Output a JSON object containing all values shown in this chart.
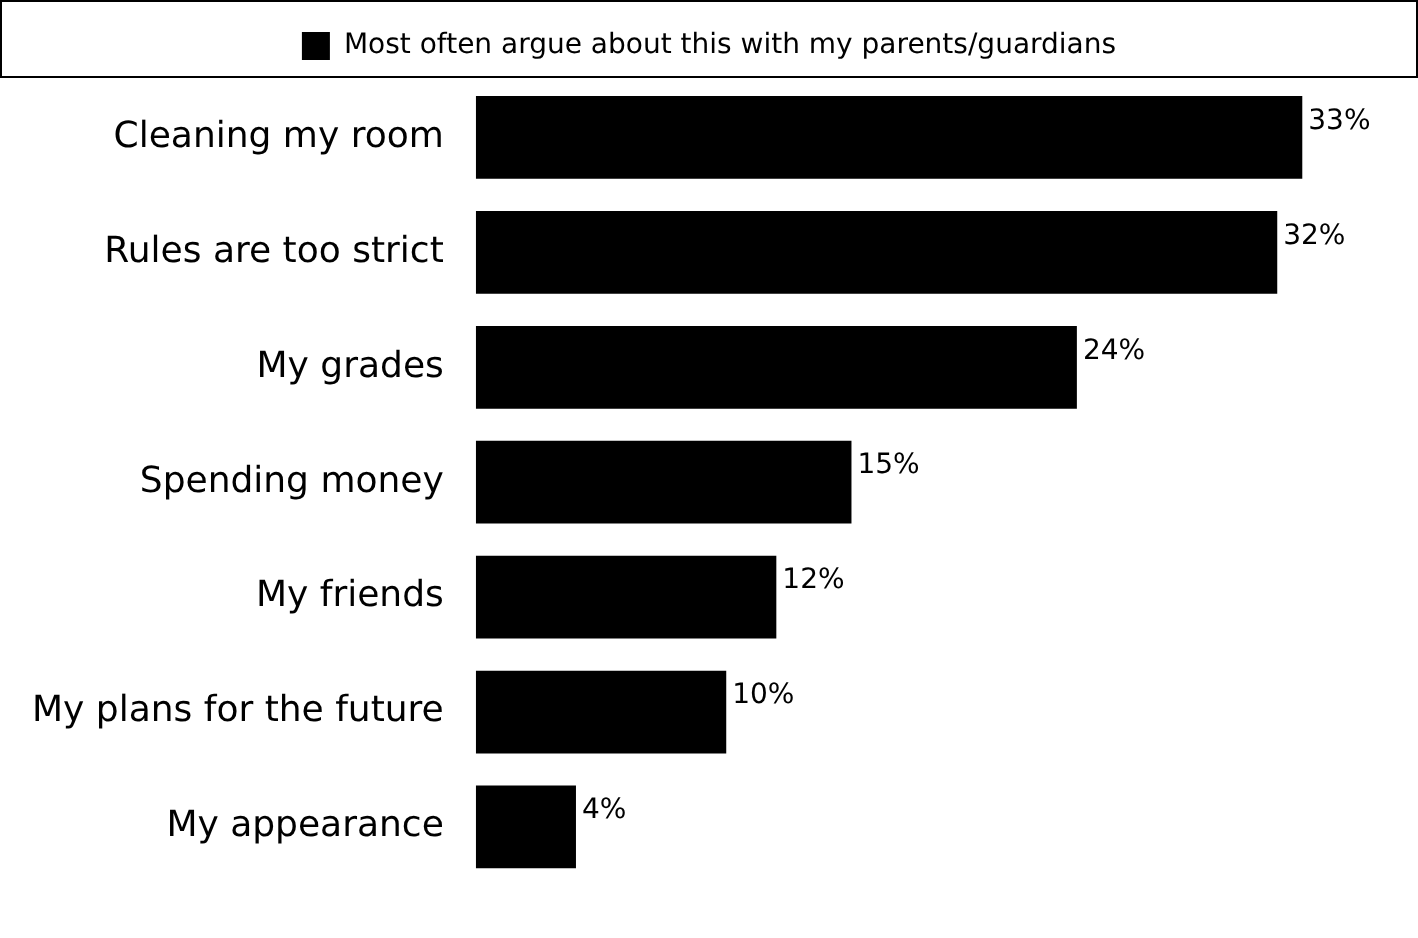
{
  "chart_data": {
    "type": "bar",
    "orientation": "horizontal",
    "categories": [
      "Cleaning my room",
      "Rules are too strict",
      "My grades",
      "Spending money",
      "My friends",
      "My plans for the future",
      "My appearance"
    ],
    "series": [
      {
        "name": "Most often argue about this with my parents/guardians",
        "color": "#000000",
        "values": [
          33,
          32,
          24,
          15,
          12,
          10,
          4
        ],
        "value_labels": [
          "33%",
          "32%",
          "24%",
          "15%",
          "12%",
          "10%",
          "4%"
        ]
      }
    ],
    "legend": "top"
  }
}
